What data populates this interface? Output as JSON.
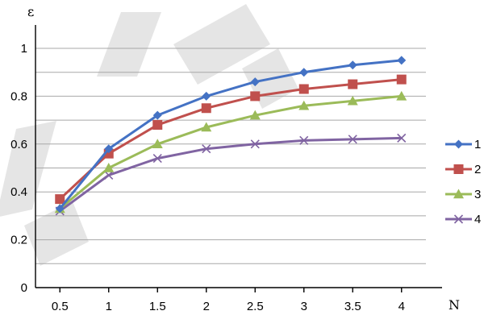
{
  "chart_data": {
    "type": "line",
    "title": "",
    "xlabel": "N",
    "ylabel": "ε",
    "x": [
      0.5,
      1,
      1.5,
      2,
      2.5,
      3,
      3.5,
      4
    ],
    "x_tick_labels": [
      "0.5",
      "1",
      "1.5",
      "2",
      "2.5",
      "3",
      "3.5",
      "4"
    ],
    "ylim": [
      0,
      1.0
    ],
    "y_ticks": [
      0,
      0.2,
      0.4,
      0.6,
      0.8,
      1.0
    ],
    "y_tick_labels": [
      "0",
      "0.2",
      "0.4",
      "0.6",
      "0.8",
      "1"
    ],
    "grid": true,
    "legend_position": "right",
    "series": [
      {
        "name": "1",
        "color": "#4472c4",
        "marker": "diamond",
        "values": [
          0.33,
          0.58,
          0.72,
          0.8,
          0.86,
          0.9,
          0.93,
          0.95
        ]
      },
      {
        "name": "2",
        "color": "#c0504d",
        "marker": "square",
        "values": [
          0.37,
          0.56,
          0.68,
          0.75,
          0.8,
          0.83,
          0.85,
          0.87
        ]
      },
      {
        "name": "3",
        "color": "#9bbb59",
        "marker": "triangle",
        "values": [
          0.33,
          0.5,
          0.6,
          0.67,
          0.72,
          0.76,
          0.78,
          0.8
        ]
      },
      {
        "name": "4",
        "color": "#8064a2",
        "marker": "x",
        "values": [
          0.32,
          0.47,
          0.54,
          0.58,
          0.6,
          0.615,
          0.62,
          0.625
        ]
      }
    ]
  }
}
